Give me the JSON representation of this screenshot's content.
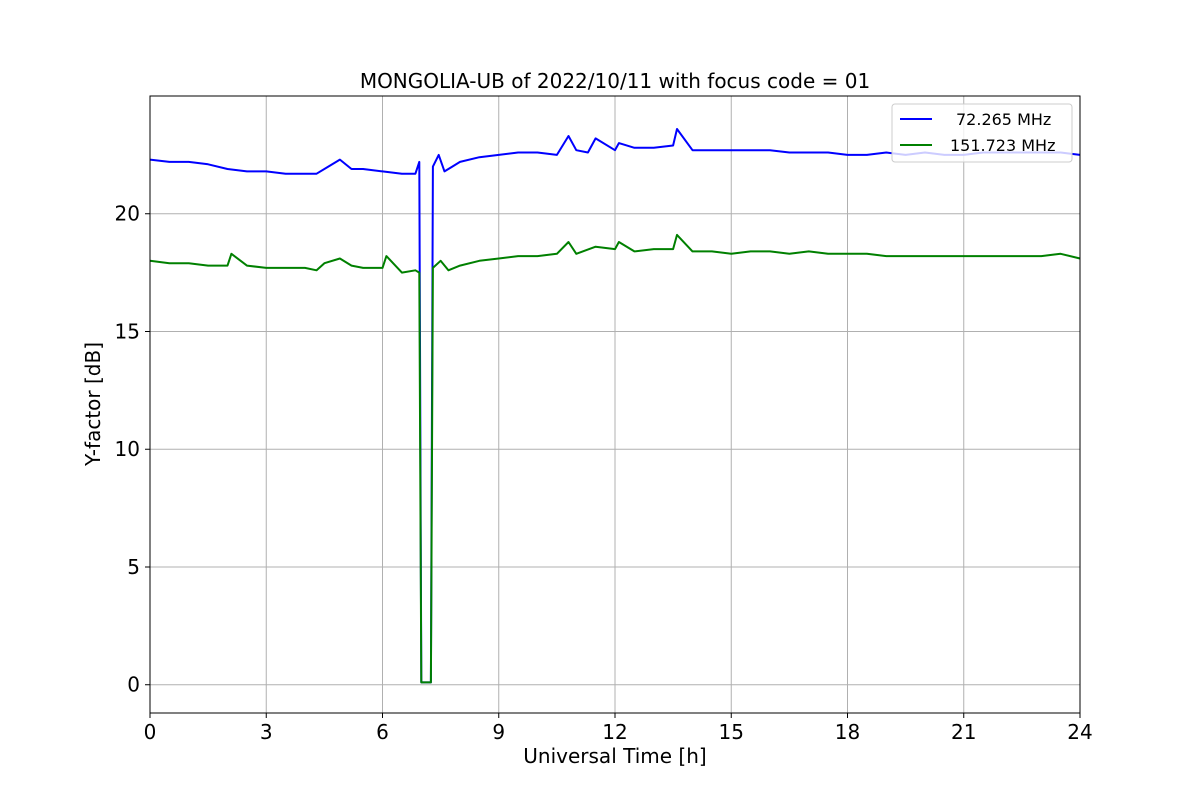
{
  "chart_data": {
    "type": "line",
    "title": "MONGOLIA-UB of 2022/10/11 with focus code = 01",
    "xlabel": "Universal Time [h]",
    "ylabel": "Y-factor [dB]",
    "xlim": [
      0,
      24
    ],
    "ylim": [
      -1.2,
      25
    ],
    "xticks": [
      0,
      3,
      6,
      9,
      12,
      15,
      18,
      21,
      24
    ],
    "yticks": [
      0,
      5,
      10,
      15,
      20
    ],
    "grid": true,
    "legend_position": "top-right",
    "series": [
      {
        "name": "72.265 MHz",
        "color": "#0000ff",
        "x": [
          0,
          0.5,
          1,
          1.5,
          2,
          2.5,
          3,
          3.5,
          4,
          4.3,
          4.6,
          4.9,
          5.2,
          5.5,
          6,
          6.5,
          6.85,
          6.95,
          7.0,
          7.25,
          7.3,
          7.45,
          7.6,
          7.8,
          8.0,
          8.5,
          9,
          9.5,
          10,
          10.5,
          10.8,
          11,
          11.3,
          11.5,
          12,
          12.1,
          12.5,
          13,
          13.5,
          13.6,
          14,
          14.5,
          15,
          15.5,
          16,
          16.5,
          17,
          17.5,
          18,
          18.5,
          19,
          19.5,
          20,
          20.5,
          21,
          21.5,
          22,
          22.5,
          23,
          23.5,
          24
        ],
        "values": [
          22.3,
          22.2,
          22.2,
          22.1,
          21.9,
          21.8,
          21.8,
          21.7,
          21.7,
          21.7,
          22.0,
          22.3,
          21.9,
          21.9,
          21.8,
          21.7,
          21.7,
          22.2,
          0.1,
          0.1,
          22.0,
          22.5,
          21.8,
          22.0,
          22.2,
          22.4,
          22.5,
          22.6,
          22.6,
          22.5,
          23.3,
          22.7,
          22.6,
          23.2,
          22.7,
          23.0,
          22.8,
          22.8,
          22.9,
          23.6,
          22.7,
          22.7,
          22.7,
          22.7,
          22.7,
          22.6,
          22.6,
          22.6,
          22.5,
          22.5,
          22.6,
          22.5,
          22.6,
          22.5,
          22.5,
          22.6,
          22.6,
          22.6,
          22.6,
          22.6,
          22.5
        ]
      },
      {
        "name": "151.723 MHz",
        "color": "#008000",
        "x": [
          0,
          0.5,
          1,
          1.5,
          2,
          2.1,
          2.5,
          3,
          3.5,
          4,
          4.3,
          4.5,
          4.9,
          5.2,
          5.5,
          6,
          6.1,
          6.5,
          6.85,
          6.95,
          7.0,
          7.25,
          7.3,
          7.5,
          7.7,
          8.0,
          8.5,
          9,
          9.5,
          10,
          10.5,
          10.8,
          11,
          11.5,
          12,
          12.1,
          12.5,
          13,
          13.5,
          13.6,
          14,
          14.5,
          15,
          15.5,
          16,
          16.5,
          17,
          17.5,
          18,
          18.5,
          19,
          19.5,
          20,
          20.5,
          21,
          21.5,
          22,
          22.5,
          23,
          23.5,
          24
        ],
        "values": [
          18.0,
          17.9,
          17.9,
          17.8,
          17.8,
          18.3,
          17.8,
          17.7,
          17.7,
          17.7,
          17.6,
          17.9,
          18.1,
          17.8,
          17.7,
          17.7,
          18.2,
          17.5,
          17.6,
          17.5,
          0.1,
          0.1,
          17.7,
          18.0,
          17.6,
          17.8,
          18.0,
          18.1,
          18.2,
          18.2,
          18.3,
          18.8,
          18.3,
          18.6,
          18.5,
          18.8,
          18.4,
          18.5,
          18.5,
          19.1,
          18.4,
          18.4,
          18.3,
          18.4,
          18.4,
          18.3,
          18.4,
          18.3,
          18.3,
          18.3,
          18.2,
          18.2,
          18.2,
          18.2,
          18.2,
          18.2,
          18.2,
          18.2,
          18.2,
          18.3,
          18.1
        ]
      }
    ]
  }
}
